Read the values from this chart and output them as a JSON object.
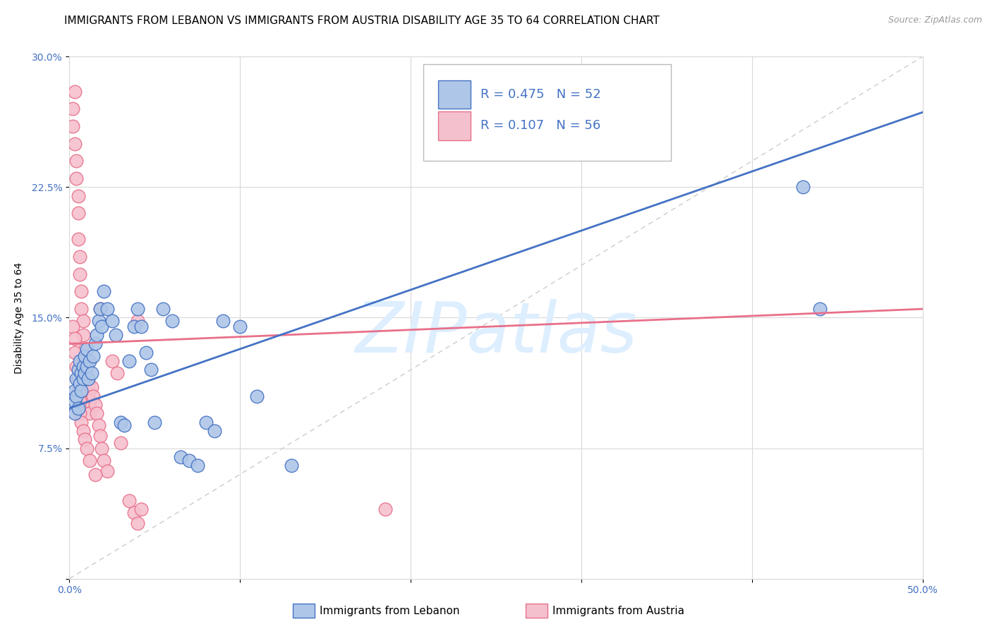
{
  "title": "IMMIGRANTS FROM LEBANON VS IMMIGRANTS FROM AUSTRIA DISABILITY AGE 35 TO 64 CORRELATION CHART",
  "source": "Source: ZipAtlas.com",
  "ylabel": "Disability Age 35 to 64",
  "xlim": [
    0.0,
    0.5
  ],
  "ylim": [
    0.0,
    0.3
  ],
  "xticks": [
    0.0,
    0.1,
    0.2,
    0.3,
    0.4,
    0.5
  ],
  "xticklabels": [
    "0.0%",
    "",
    "",
    "",
    "",
    "50.0%"
  ],
  "yticks": [
    0.0,
    0.075,
    0.15,
    0.225,
    0.3
  ],
  "yticklabels": [
    "",
    "7.5%",
    "15.0%",
    "22.5%",
    "30.0%"
  ],
  "blue_scatter_x": [
    0.003,
    0.003,
    0.003,
    0.004,
    0.004,
    0.005,
    0.005,
    0.006,
    0.006,
    0.007,
    0.007,
    0.008,
    0.008,
    0.009,
    0.009,
    0.01,
    0.01,
    0.011,
    0.012,
    0.013,
    0.014,
    0.015,
    0.016,
    0.017,
    0.018,
    0.019,
    0.02,
    0.022,
    0.025,
    0.027,
    0.03,
    0.032,
    0.035,
    0.038,
    0.04,
    0.042,
    0.045,
    0.048,
    0.05,
    0.055,
    0.06,
    0.065,
    0.07,
    0.075,
    0.08,
    0.085,
    0.09,
    0.1,
    0.11,
    0.13,
    0.43,
    0.44
  ],
  "blue_scatter_y": [
    0.108,
    0.102,
    0.095,
    0.115,
    0.105,
    0.12,
    0.098,
    0.125,
    0.112,
    0.118,
    0.108,
    0.122,
    0.115,
    0.128,
    0.118,
    0.132,
    0.122,
    0.115,
    0.125,
    0.118,
    0.128,
    0.135,
    0.14,
    0.148,
    0.155,
    0.145,
    0.165,
    0.155,
    0.148,
    0.14,
    0.09,
    0.088,
    0.125,
    0.145,
    0.155,
    0.145,
    0.13,
    0.12,
    0.09,
    0.155,
    0.148,
    0.07,
    0.068,
    0.065,
    0.09,
    0.085,
    0.148,
    0.145,
    0.105,
    0.065,
    0.225,
    0.155
  ],
  "pink_scatter_x": [
    0.002,
    0.002,
    0.003,
    0.003,
    0.004,
    0.004,
    0.005,
    0.005,
    0.005,
    0.006,
    0.006,
    0.007,
    0.007,
    0.008,
    0.008,
    0.009,
    0.009,
    0.01,
    0.01,
    0.011,
    0.011,
    0.012,
    0.012,
    0.013,
    0.014,
    0.015,
    0.016,
    0.017,
    0.018,
    0.019,
    0.02,
    0.022,
    0.025,
    0.028,
    0.03,
    0.035,
    0.038,
    0.04,
    0.002,
    0.003,
    0.003,
    0.004,
    0.005,
    0.005,
    0.006,
    0.006,
    0.007,
    0.008,
    0.009,
    0.01,
    0.012,
    0.015,
    0.018,
    0.04,
    0.042,
    0.185
  ],
  "pink_scatter_y": [
    0.27,
    0.26,
    0.28,
    0.25,
    0.24,
    0.23,
    0.22,
    0.21,
    0.195,
    0.185,
    0.175,
    0.165,
    0.155,
    0.148,
    0.14,
    0.132,
    0.122,
    0.125,
    0.115,
    0.112,
    0.105,
    0.102,
    0.095,
    0.11,
    0.105,
    0.1,
    0.095,
    0.088,
    0.082,
    0.075,
    0.068,
    0.062,
    0.125,
    0.118,
    0.078,
    0.045,
    0.038,
    0.032,
    0.145,
    0.138,
    0.13,
    0.122,
    0.115,
    0.108,
    0.102,
    0.095,
    0.09,
    0.085,
    0.08,
    0.075,
    0.068,
    0.06,
    0.155,
    0.148,
    0.04,
    0.04
  ],
  "blue_line_x": [
    0.0,
    0.5
  ],
  "blue_line_y": [
    0.098,
    0.268
  ],
  "pink_line_x": [
    0.0,
    0.5
  ],
  "pink_line_y": [
    0.135,
    0.155
  ],
  "dash_line_x": [
    0.0,
    0.5
  ],
  "dash_line_y": [
    0.0,
    0.3
  ],
  "blue_color": "#4472c4",
  "pink_color": "#e8708a",
  "blue_scatter_color": "#aec6e8",
  "pink_scatter_color": "#f5c0ce",
  "dash_color": "#cccccc",
  "grid_color": "#d9d9d9",
  "axis_color": "#4472c4",
  "background_color": "#ffffff",
  "title_fontsize": 11,
  "source_fontsize": 9,
  "label_fontsize": 10,
  "tick_fontsize": 10,
  "watermark_text": "ZIPatlas",
  "watermark_color": "#ddeeff",
  "watermark_fontsize": 72,
  "legend_r1": "R = 0.475   N = 52",
  "legend_r2": "R = 0.107   N = 56",
  "legend_text_color": "#4472c4",
  "footer_label1": "Immigrants from Lebanon",
  "footer_label2": "Immigrants from Austria"
}
